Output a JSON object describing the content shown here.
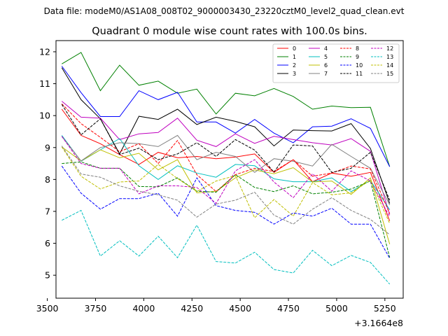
{
  "header": {
    "file_text": "Data file: modeM0/AS1A08_008T02_9000003430_23220cztM0_level2_quad_clean.evt"
  },
  "chart_data": {
    "type": "line",
    "title": "Quadrant 0 module wise count rates with 100.0s bins.",
    "xlabel": "",
    "ylabel": "",
    "x_offset_label": "+3.1664e8",
    "xlim": [
      3545,
      5345
    ],
    "ylim": [
      4.28,
      12.35
    ],
    "xticks": [
      3500,
      3750,
      4000,
      4250,
      4500,
      4750,
      5000,
      5250
    ],
    "yticks": [
      5,
      6,
      7,
      8,
      9,
      10,
      11,
      12
    ],
    "x": [
      3575,
      3675,
      3775,
      3875,
      3975,
      4075,
      4175,
      4275,
      4375,
      4475,
      4575,
      4675,
      4775,
      4875,
      4975,
      5075,
      5175,
      5275
    ],
    "legend_location": "upper-right",
    "series": [
      {
        "name": "0",
        "color": "#ff0000",
        "dash": "solid",
        "values": [
          10.2,
          9.38,
          9.12,
          8.78,
          8.47,
          8.85,
          8.68,
          8.72,
          8.65,
          8.7,
          8.8,
          8.22,
          8.62,
          7.93,
          8.2,
          8.1,
          8.22,
          6.7
        ]
      },
      {
        "name": "1",
        "color": "#008000",
        "dash": "solid",
        "values": [
          11.62,
          11.98,
          10.78,
          11.58,
          10.95,
          11.08,
          10.7,
          10.83,
          10.05,
          10.7,
          10.62,
          10.85,
          10.6,
          10.2,
          10.3,
          10.25,
          10.26,
          8.4
        ]
      },
      {
        "name": "2",
        "color": "#0000ff",
        "dash": "solid",
        "values": [
          11.55,
          10.72,
          9.97,
          9.97,
          10.78,
          10.5,
          10.73,
          9.8,
          9.8,
          9.45,
          9.88,
          9.45,
          9.15,
          9.65,
          9.67,
          9.9,
          9.6,
          8.4
        ]
      },
      {
        "name": "3",
        "color": "#000000",
        "dash": "solid",
        "values": [
          11.5,
          10.5,
          9.9,
          8.8,
          9.98,
          9.88,
          10.2,
          9.72,
          9.95,
          9.82,
          9.65,
          9.05,
          9.55,
          9.53,
          9.52,
          9.75,
          8.97,
          7.25
        ]
      },
      {
        "name": "4",
        "color": "#bf00bf",
        "dash": "solid",
        "values": [
          10.45,
          9.95,
          9.92,
          9.25,
          9.43,
          9.47,
          9.92,
          9.23,
          9.03,
          9.43,
          9.13,
          9.35,
          9.25,
          9.15,
          9.08,
          9.28,
          8.88,
          6.9
        ]
      },
      {
        "name": "5",
        "color": "#00bfbf",
        "dash": "solid",
        "values": [
          9.38,
          8.57,
          8.93,
          9.28,
          8.43,
          8.0,
          8.43,
          8.2,
          8.07,
          8.47,
          8.43,
          8.02,
          7.93,
          7.93,
          8.05,
          7.62,
          7.97,
          7.05
        ]
      },
      {
        "name": "6",
        "color": "#bfbf00",
        "dash": "solid",
        "values": [
          9.02,
          8.58,
          8.93,
          8.68,
          8.82,
          8.3,
          8.62,
          7.58,
          7.63,
          8.05,
          8.3,
          8.18,
          8.37,
          7.92,
          7.95,
          7.53,
          8.05,
          5.97
        ]
      },
      {
        "name": "7",
        "color": "#808080",
        "dash": "solid",
        "values": [
          9.35,
          8.58,
          9.0,
          9.15,
          9.12,
          9.03,
          9.38,
          8.62,
          8.85,
          8.72,
          8.22,
          8.65,
          8.57,
          8.42,
          9.1,
          8.72,
          8.35,
          7.2
        ]
      },
      {
        "name": "8",
        "color": "#ff0000",
        "dash": "dashed",
        "values": [
          10.37,
          9.75,
          9.32,
          8.87,
          9.12,
          8.5,
          9.22,
          8.15,
          7.62,
          8.15,
          8.35,
          8.25,
          8.62,
          8.1,
          8.2,
          8.42,
          8.33,
          6.93
        ]
      },
      {
        "name": "9",
        "color": "#008000",
        "dash": "dashed",
        "values": [
          8.5,
          8.55,
          8.35,
          8.35,
          7.78,
          7.77,
          8.05,
          7.63,
          7.6,
          8.15,
          7.75,
          7.62,
          7.8,
          7.55,
          7.6,
          7.7,
          7.95,
          5.55
        ]
      },
      {
        "name": "10",
        "color": "#0000ff",
        "dash": "dashed",
        "values": [
          8.42,
          7.57,
          7.07,
          7.4,
          7.4,
          7.57,
          6.85,
          8.05,
          7.18,
          7.03,
          6.97,
          6.6,
          6.95,
          6.85,
          7.1,
          6.6,
          6.6,
          5.53
        ]
      },
      {
        "name": "11",
        "color": "#000000",
        "dash": "dashed",
        "values": [
          10.35,
          9.4,
          9.9,
          8.78,
          8.98,
          8.62,
          8.8,
          9.15,
          8.72,
          9.25,
          8.92,
          8.23,
          9.08,
          9.05,
          8.22,
          8.35,
          8.85,
          7.35
        ]
      },
      {
        "name": "12",
        "color": "#bf00bf",
        "dash": "dashed",
        "values": [
          9.35,
          8.5,
          8.35,
          8.35,
          7.55,
          7.8,
          7.8,
          7.75,
          7.25,
          8.27,
          8.62,
          7.92,
          7.43,
          8.18,
          7.63,
          8.27,
          7.95,
          6.83
        ]
      },
      {
        "name": "13",
        "color": "#00bfbf",
        "dash": "dashed",
        "values": [
          6.72,
          7.03,
          5.6,
          6.08,
          5.6,
          6.22,
          5.55,
          6.57,
          5.43,
          5.38,
          5.72,
          5.18,
          5.07,
          5.78,
          5.3,
          5.62,
          5.4,
          4.72
        ]
      },
      {
        "name": "14",
        "color": "#bfbf00",
        "dash": "dashed",
        "values": [
          9.02,
          8.1,
          7.7,
          7.92,
          7.95,
          8.47,
          8.03,
          7.62,
          7.95,
          8.12,
          6.8,
          7.37,
          6.85,
          7.9,
          7.52,
          7.58,
          7.98,
          6.62
        ]
      },
      {
        "name": "15",
        "color": "#808080",
        "dash": "dashed",
        "values": [
          9.05,
          8.17,
          8.07,
          7.8,
          7.63,
          7.52,
          7.35,
          6.82,
          7.23,
          7.35,
          7.6,
          6.88,
          6.6,
          7.07,
          7.43,
          7.03,
          6.75,
          6.27
        ]
      }
    ]
  }
}
